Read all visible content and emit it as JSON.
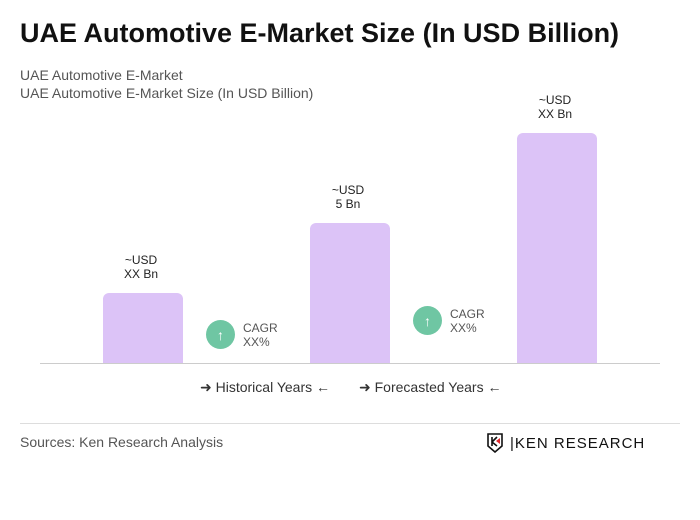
{
  "title": "UAE Automotive E-Market Size (In USD Billion)",
  "subtitle1": "UAE Automotive E-Market",
  "subtitle2": "UAE Automotive E-Market Size (In USD Billion)",
  "chart_data": {
    "type": "bar",
    "categories": [
      "",
      "",
      ""
    ],
    "values": [
      2.5,
      5,
      8.2
    ],
    "data_labels": [
      [
        "~USD",
        "XX Bn"
      ],
      [
        "~USD",
        "5 Bn"
      ],
      [
        "~USD",
        "XX Bn"
      ]
    ],
    "bar_color": "#dcc3f7",
    "cagr": [
      {
        "label": "CAGR",
        "value": "XX%"
      },
      {
        "label": "CAGR",
        "value": "XX%"
      }
    ],
    "cagr_color": "#6fc6a3",
    "legend": {
      "historical": "Historical Years",
      "forecasted": "Forecasted Years"
    },
    "grid": false
  },
  "sources": "Sources: Ken Research Analysis",
  "logo": "KEN RESEARCH"
}
